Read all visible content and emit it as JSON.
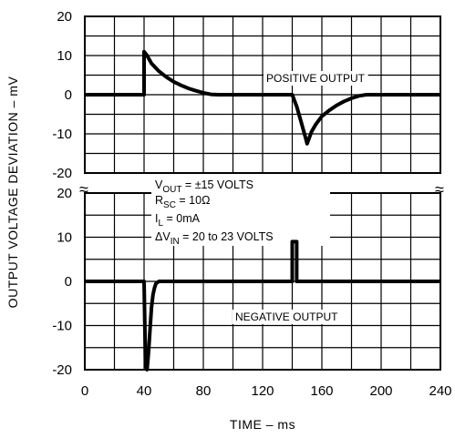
{
  "chart_data": [
    {
      "type": "line",
      "panel": "top",
      "ylim": [
        -20,
        20
      ],
      "xlim": [
        0,
        240
      ],
      "y_ticks": [
        "20",
        "10",
        "0",
        "-10",
        "-20"
      ],
      "annotation": "POSITIVE OUTPUT",
      "series": [
        {
          "x": [
            0,
            40,
            40,
            42,
            45,
            50,
            55,
            60,
            65,
            70,
            75,
            80,
            85,
            90,
            140,
            143,
            146,
            149,
            150,
            151,
            153,
            156,
            160,
            165,
            170,
            175,
            180,
            185,
            190,
            240
          ],
          "y": [
            0,
            0,
            11,
            10,
            8,
            6,
            4.5,
            3.3,
            2.4,
            1.6,
            1,
            0.5,
            0.1,
            0,
            0,
            -3,
            -7,
            -11,
            -12.5,
            -11.5,
            -9.5,
            -7.5,
            -5.5,
            -4,
            -2.7,
            -1.7,
            -0.9,
            -0.3,
            0,
            0
          ]
        }
      ]
    },
    {
      "type": "line",
      "panel": "bottom",
      "ylim": [
        -20,
        20
      ],
      "xlim": [
        0,
        240
      ],
      "y_ticks": [
        "20",
        "10",
        "0",
        "-10",
        "-20"
      ],
      "x_ticks": [
        "0",
        "40",
        "80",
        "120",
        "160",
        "200",
        "240"
      ],
      "annotation": "NEGATIVE OUTPUT",
      "series": [
        {
          "x": [
            0,
            40,
            41,
            42,
            43,
            44,
            45,
            46,
            47,
            48,
            50,
            140,
            140,
            143,
            143,
            240
          ],
          "y": [
            0,
            0,
            -19,
            -20,
            -16,
            -11,
            -6,
            -3,
            -1.5,
            -0.5,
            0,
            0,
            9,
            9,
            0,
            0
          ]
        }
      ]
    }
  ],
  "ylabel": "OUTPUT VOLTAGE DEVIATION – mV",
  "xlabel": "TIME – ms",
  "conditions": {
    "vout": {
      "sym": "V",
      "sub": "OUT",
      "rest": " = ±15 VOLTS"
    },
    "rsc": {
      "sym": "R",
      "sub": "SC",
      "rest": " = 10Ω"
    },
    "il": {
      "sym": "I",
      "sub": "L",
      "rest": " = 0mA"
    },
    "dvin": {
      "sym": "ΔV",
      "sub": "IN",
      "rest": " = 20 to 23 VOLTS"
    }
  },
  "break_symbol": "≈"
}
